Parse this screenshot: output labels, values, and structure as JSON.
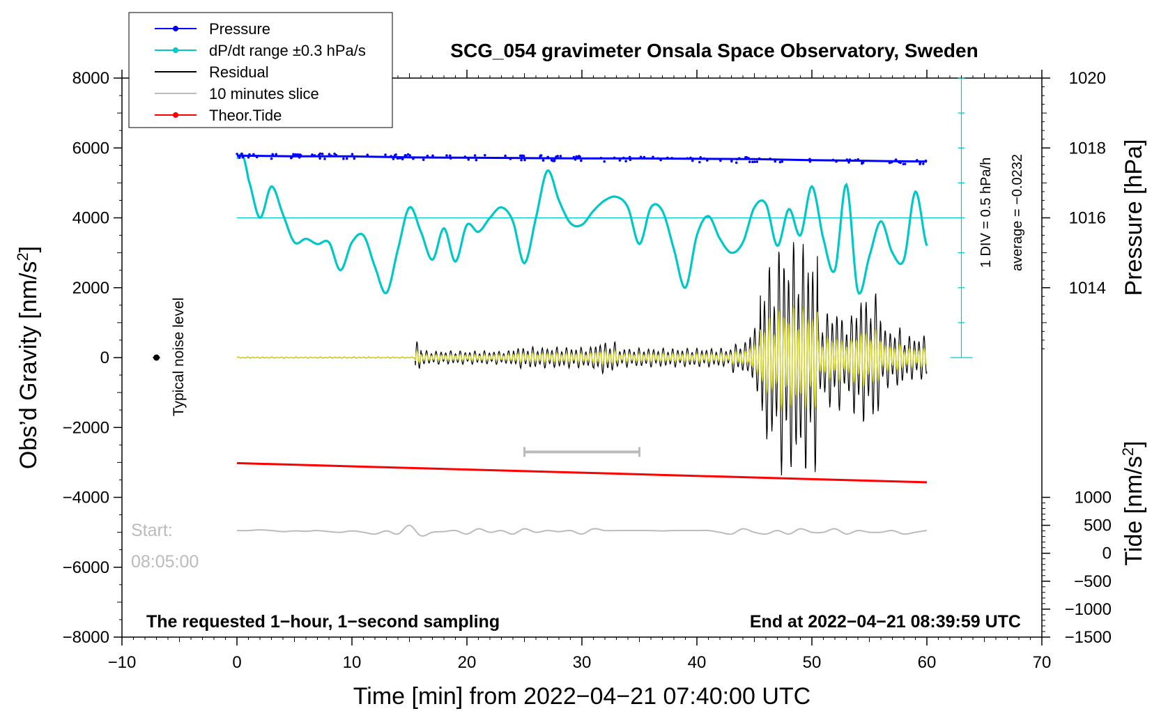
{
  "chart_data": {
    "type": "line",
    "title": "SCG_054 gravimeter Onsala Space Observatory, Sweden",
    "xlabel": "Time [min] from 2022−04−21 07:40:00 UTC",
    "ylabel_left": "Obs’d Gravity [nm/s",
    "ylabel_left_sup": "2",
    "ylabel_left_end": "]",
    "ylabel_right_pressure": "Pressure [hPa]",
    "ylabel_right_tide": "Tide [nm/s",
    "ylabel_right_tide_sup": "2",
    "ylabel_right_tide_end": "]",
    "xlim": [
      -10,
      70
    ],
    "ylim": [
      -8000,
      8000
    ],
    "x_ticks": [
      -10,
      0,
      10,
      20,
      30,
      40,
      50,
      60,
      70
    ],
    "x_tick_labels": [
      "−10",
      "0",
      "10",
      "20",
      "30",
      "40",
      "50",
      "60",
      "70"
    ],
    "y_ticks": [
      -8000,
      -6000,
      -4000,
      -2000,
      0,
      2000,
      4000,
      6000,
      8000
    ],
    "y_tick_labels": [
      "−8000",
      "−6000",
      "−4000",
      "−2000",
      "0",
      "2000",
      "4000",
      "6000",
      "8000"
    ],
    "pressure_axis": {
      "ticks_hpa": [
        1014,
        1016,
        1018,
        1020
      ],
      "tick_labels": [
        "1014",
        "1016",
        "1018",
        "1020"
      ],
      "hpa_at_gravity_0": 1012,
      "gravity_per_hpa": 1000
    },
    "tide_axis": {
      "ticks": [
        -1500,
        -1000,
        -500,
        0,
        500,
        1000
      ],
      "tick_labels": [
        "−1500",
        "−1000",
        "−500",
        "0",
        "500",
        "1000"
      ],
      "tide_at_gravity_minus8000": -1500,
      "gravity_per_tide": 1.6
    },
    "legend": {
      "position": "top-left",
      "entries": [
        {
          "label": "Pressure",
          "color": "#0000ff",
          "marker": true
        },
        {
          "label": "dP/dt range ±0.3 hPa/s",
          "color": "#00c8c8",
          "marker": true
        },
        {
          "label": "Residual",
          "color": "#000000",
          "marker": false
        },
        {
          "label": "10 minutes slice",
          "color": "#bbbbbb",
          "marker": false
        },
        {
          "label": "Theor.Tide",
          "color": "#ff0000",
          "marker": true
        }
      ]
    },
    "annotations": {
      "noise_label": "Typical noise level",
      "div_label": "1 DIV = 0.5 hPa/h",
      "average_label": "average = −0.0232",
      "start_label_1": "Start:",
      "start_label_2": "08:05:00",
      "bottom_left": "The requested 1−hour, 1−second sampling",
      "bottom_right": "End at 2022−04−21 08:39:59 UTC"
    },
    "noise_marker": {
      "x": -7,
      "y": 0
    },
    "slice_bar": {
      "x": [
        25,
        35
      ],
      "y": -2700
    },
    "dpdt_reference_level": 4000,
    "series": [
      {
        "name": "Pressure",
        "color": "#0000ff",
        "x": [
          0,
          5,
          10,
          15,
          20,
          25,
          30,
          35,
          40,
          45,
          50,
          55,
          60
        ],
        "values": [
          5780,
          5760,
          5760,
          5730,
          5720,
          5710,
          5700,
          5700,
          5690,
          5680,
          5650,
          5630,
          5610
        ]
      },
      {
        "name": "dP/dt range ±0.3 hPa/s",
        "color": "#00c8c8",
        "x": [
          0,
          0.5,
          1,
          2,
          3,
          4,
          5,
          6,
          7,
          8,
          9,
          10,
          11,
          12,
          13,
          14,
          15,
          16,
          17,
          18,
          19,
          20,
          21,
          22,
          23,
          24,
          25,
          26,
          27,
          28,
          29,
          30,
          31,
          32,
          33,
          34,
          35,
          36,
          37,
          38,
          39,
          40,
          41,
          42,
          43,
          44,
          45,
          46,
          47,
          48,
          49,
          50,
          51,
          52,
          53,
          54,
          55,
          56,
          57,
          58,
          59,
          60
        ],
        "values": [
          5700,
          5800,
          5100,
          4000,
          4900,
          4100,
          3300,
          3400,
          3250,
          3300,
          2500,
          3300,
          3500,
          2600,
          1850,
          3100,
          4300,
          3600,
          2800,
          3700,
          2750,
          3800,
          3600,
          4000,
          4300,
          3900,
          2700,
          4000,
          5350,
          4500,
          3850,
          3800,
          4200,
          4500,
          4600,
          4300,
          3250,
          4300,
          4200,
          3100,
          2000,
          3500,
          4050,
          3400,
          3000,
          3300,
          4300,
          4400,
          3200,
          4250,
          3500,
          4900,
          3400,
          2500,
          4950,
          1900,
          2900,
          3900,
          3000,
          2800,
          4750,
          3200
        ]
      },
      {
        "name": "Residual",
        "color": "#000000",
        "x": [
          0,
          5,
          10,
          15,
          20,
          25,
          30,
          35,
          40,
          45,
          50,
          55,
          60
        ],
        "values": [
          0,
          0,
          0,
          0,
          0,
          0,
          0,
          0,
          0,
          0,
          0,
          0,
          0
        ]
      },
      {
        "name": "Theor.Tide",
        "color": "#ff0000",
        "x": [
          0,
          60
        ],
        "values": [
          -3020,
          -3570
        ]
      },
      {
        "name": "10 minutes slice",
        "color": "#bbbbbb",
        "x": [
          0,
          1,
          2,
          3,
          4,
          5,
          6,
          7,
          8,
          9,
          10,
          11,
          12,
          13,
          14,
          15,
          16,
          17,
          18,
          19,
          20,
          21,
          22,
          23,
          24,
          25,
          26,
          27,
          28,
          29,
          30,
          31,
          32,
          33,
          34,
          35,
          36,
          37,
          38,
          39,
          40,
          41,
          42,
          43,
          44,
          45,
          46,
          47,
          48,
          49,
          50,
          51,
          52,
          53,
          54,
          55,
          56,
          57,
          58,
          59,
          60
        ],
        "values": [
          -4950,
          -4950,
          -4930,
          -4950,
          -4980,
          -4960,
          -4970,
          -4950,
          -4980,
          -5000,
          -4960,
          -5000,
          -5050,
          -4960,
          -5050,
          -4800,
          -5100,
          -5000,
          -4980,
          -4950,
          -5050,
          -4900,
          -5000,
          -4950,
          -5050,
          -4900,
          -5000,
          -4950,
          -4980,
          -4950,
          -5050,
          -4900,
          -4950,
          -4950,
          -4950,
          -4950,
          -4950,
          -4960,
          -4950,
          -4950,
          -4950,
          -4950,
          -5000,
          -5050,
          -4900,
          -5000,
          -5050,
          -4950,
          -5050,
          -4900,
          -5000,
          -5000,
          -4900,
          -5050,
          -4950,
          -5000,
          -5000,
          -4950,
          -5050,
          -5000,
          -4950
        ]
      }
    ]
  }
}
